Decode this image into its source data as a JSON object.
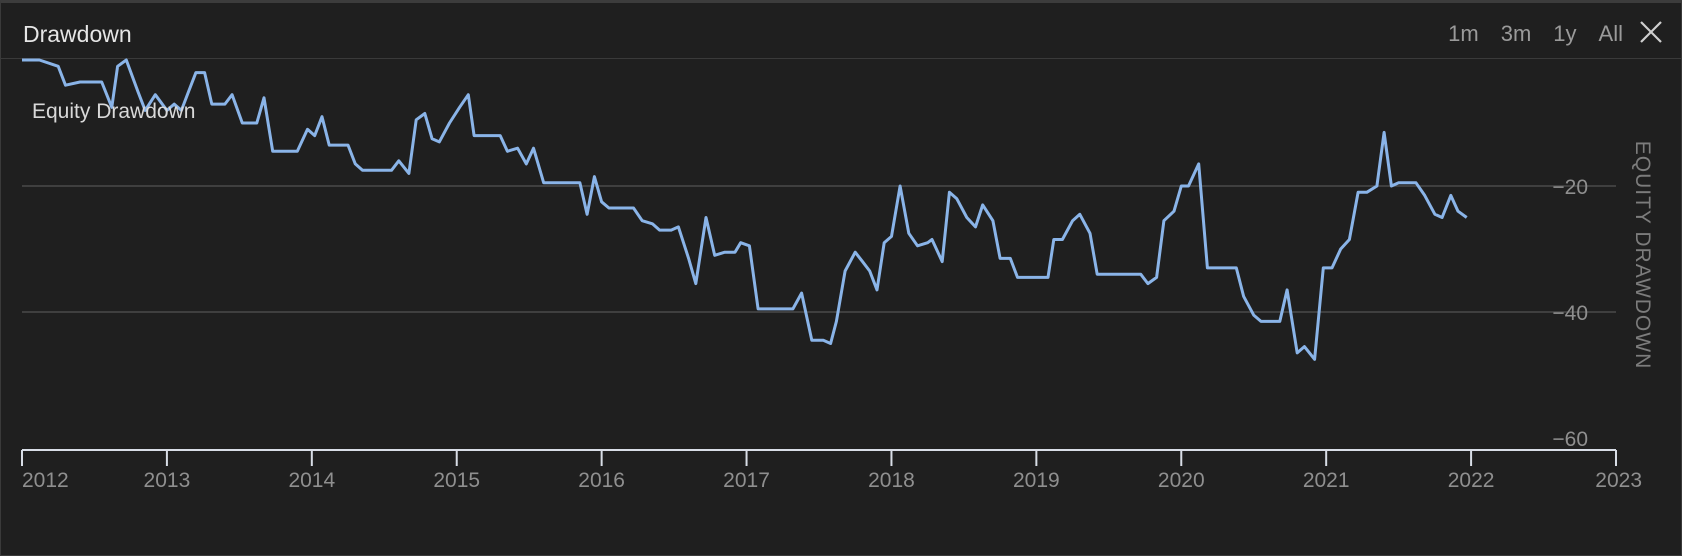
{
  "header": {
    "title": "Drawdown",
    "ranges": [
      "1m",
      "3m",
      "1y",
      "All"
    ],
    "close_icon": "close-icon"
  },
  "colors": {
    "line": "#8ab4e8",
    "grid": "#4a4a4a",
    "axis": "#d8dde6",
    "tick_text": "#8f8f8f"
  },
  "chart_data": {
    "type": "line",
    "title": "",
    "series_label": "Equity Drawdown",
    "ylabel": "EQUITY DRAWDOWN",
    "y_ticks": [
      -20,
      -40,
      -60
    ],
    "ylim": [
      -60,
      0
    ],
    "xlim": [
      2012,
      2023
    ],
    "x_ticks": [
      "2012",
      "2013",
      "2014",
      "2015",
      "2016",
      "2017",
      "2018",
      "2019",
      "2020",
      "2021",
      "2022",
      "2023"
    ],
    "grid": true,
    "series": [
      {
        "values": [
          [
            2012.0,
            0.0
          ],
          [
            2012.12,
            0.0
          ],
          [
            2012.25,
            -1.0
          ],
          [
            2012.3,
            -4.0
          ],
          [
            2012.4,
            -3.5
          ],
          [
            2012.55,
            -3.5
          ],
          [
            2012.62,
            -7.5
          ],
          [
            2012.66,
            -1.0
          ],
          [
            2012.72,
            0.0
          ],
          [
            2012.8,
            -5.0
          ],
          [
            2012.85,
            -8.0
          ],
          [
            2012.92,
            -5.5
          ],
          [
            2013.0,
            -8.0
          ],
          [
            2013.05,
            -7.0
          ],
          [
            2013.1,
            -8.0
          ],
          [
            2013.15,
            -5.0
          ],
          [
            2013.2,
            -2.0
          ],
          [
            2013.26,
            -2.0
          ],
          [
            2013.31,
            -7.0
          ],
          [
            2013.4,
            -7.0
          ],
          [
            2013.45,
            -5.5
          ],
          [
            2013.52,
            -10.0
          ],
          [
            2013.62,
            -10.0
          ],
          [
            2013.67,
            -6.0
          ],
          [
            2013.73,
            -14.5
          ],
          [
            2013.85,
            -14.5
          ],
          [
            2013.9,
            -14.5
          ],
          [
            2013.97,
            -11.0
          ],
          [
            2014.02,
            -12.0
          ],
          [
            2014.07,
            -9.0
          ],
          [
            2014.12,
            -13.5
          ],
          [
            2014.2,
            -13.5
          ],
          [
            2014.25,
            -13.5
          ],
          [
            2014.3,
            -16.5
          ],
          [
            2014.35,
            -17.5
          ],
          [
            2014.45,
            -17.5
          ],
          [
            2014.55,
            -17.5
          ],
          [
            2014.6,
            -16.0
          ],
          [
            2014.67,
            -18.0
          ],
          [
            2014.72,
            -9.5
          ],
          [
            2014.78,
            -8.5
          ],
          [
            2014.83,
            -12.5
          ],
          [
            2014.88,
            -13.0
          ],
          [
            2014.95,
            -10.0
          ],
          [
            2015.02,
            -7.5
          ],
          [
            2015.08,
            -5.5
          ],
          [
            2015.12,
            -12.0
          ],
          [
            2015.25,
            -12.0
          ],
          [
            2015.3,
            -12.0
          ],
          [
            2015.35,
            -14.5
          ],
          [
            2015.42,
            -14.0
          ],
          [
            2015.48,
            -16.5
          ],
          [
            2015.53,
            -14.0
          ],
          [
            2015.6,
            -19.5
          ],
          [
            2015.75,
            -19.5
          ],
          [
            2015.85,
            -19.5
          ],
          [
            2015.9,
            -24.5
          ],
          [
            2015.95,
            -18.5
          ],
          [
            2016.0,
            -22.5
          ],
          [
            2016.05,
            -23.5
          ],
          [
            2016.15,
            -23.5
          ],
          [
            2016.22,
            -23.5
          ],
          [
            2016.28,
            -25.5
          ],
          [
            2016.35,
            -26.0
          ],
          [
            2016.4,
            -27.0
          ],
          [
            2016.48,
            -27.0
          ],
          [
            2016.53,
            -26.5
          ],
          [
            2016.6,
            -31.5
          ],
          [
            2016.65,
            -35.5
          ],
          [
            2016.72,
            -25.0
          ],
          [
            2016.78,
            -31.0
          ],
          [
            2016.85,
            -30.5
          ],
          [
            2016.92,
            -30.5
          ],
          [
            2016.96,
            -29.0
          ],
          [
            2017.02,
            -29.5
          ],
          [
            2017.08,
            -39.5
          ],
          [
            2017.2,
            -39.5
          ],
          [
            2017.32,
            -39.5
          ],
          [
            2017.38,
            -37.0
          ],
          [
            2017.45,
            -44.5
          ],
          [
            2017.53,
            -44.5
          ],
          [
            2017.58,
            -45.0
          ],
          [
            2017.62,
            -41.5
          ],
          [
            2017.68,
            -33.5
          ],
          [
            2017.75,
            -30.5
          ],
          [
            2017.8,
            -32.0
          ],
          [
            2017.85,
            -33.5
          ],
          [
            2017.9,
            -36.5
          ],
          [
            2017.95,
            -29.0
          ],
          [
            2018.0,
            -28.0
          ],
          [
            2018.06,
            -20.0
          ],
          [
            2018.12,
            -27.5
          ],
          [
            2018.18,
            -29.5
          ],
          [
            2018.25,
            -29.0
          ],
          [
            2018.28,
            -28.5
          ],
          [
            2018.35,
            -32.0
          ],
          [
            2018.4,
            -21.0
          ],
          [
            2018.45,
            -22.0
          ],
          [
            2018.52,
            -25.0
          ],
          [
            2018.58,
            -26.5
          ],
          [
            2018.63,
            -23.0
          ],
          [
            2018.7,
            -25.5
          ],
          [
            2018.75,
            -31.5
          ],
          [
            2018.82,
            -31.5
          ],
          [
            2018.87,
            -34.5
          ],
          [
            2018.95,
            -34.5
          ],
          [
            2019.02,
            -34.5
          ],
          [
            2019.08,
            -34.5
          ],
          [
            2019.12,
            -28.5
          ],
          [
            2019.18,
            -28.5
          ],
          [
            2019.25,
            -25.5
          ],
          [
            2019.3,
            -24.5
          ],
          [
            2019.37,
            -27.5
          ],
          [
            2019.42,
            -34.0
          ],
          [
            2019.52,
            -34.0
          ],
          [
            2019.62,
            -34.0
          ],
          [
            2019.72,
            -34.0
          ],
          [
            2019.77,
            -35.5
          ],
          [
            2019.83,
            -34.5
          ],
          [
            2019.88,
            -25.5
          ],
          [
            2019.95,
            -24.0
          ],
          [
            2020.0,
            -20.0
          ],
          [
            2020.05,
            -20.0
          ],
          [
            2020.12,
            -16.5
          ],
          [
            2020.18,
            -33.0
          ],
          [
            2020.3,
            -33.0
          ],
          [
            2020.38,
            -33.0
          ],
          [
            2020.43,
            -37.5
          ],
          [
            2020.5,
            -40.5
          ],
          [
            2020.55,
            -41.5
          ],
          [
            2020.65,
            -41.5
          ],
          [
            2020.68,
            -41.5
          ],
          [
            2020.73,
            -36.5
          ],
          [
            2020.8,
            -46.5
          ],
          [
            2020.85,
            -45.5
          ],
          [
            2020.92,
            -47.5
          ],
          [
            2020.98,
            -33.0
          ],
          [
            2021.04,
            -33.0
          ],
          [
            2021.1,
            -30.0
          ],
          [
            2021.16,
            -28.5
          ],
          [
            2021.22,
            -21.0
          ],
          [
            2021.28,
            -21.0
          ],
          [
            2021.35,
            -20.0
          ],
          [
            2021.4,
            -11.5
          ],
          [
            2021.45,
            -20.0
          ],
          [
            2021.5,
            -19.5
          ],
          [
            2021.62,
            -19.5
          ],
          [
            2021.68,
            -21.5
          ],
          [
            2021.75,
            -24.5
          ],
          [
            2021.8,
            -25.0
          ],
          [
            2021.86,
            -21.5
          ],
          [
            2021.91,
            -24.0
          ],
          [
            2021.97,
            -25.0
          ]
        ]
      }
    ]
  }
}
